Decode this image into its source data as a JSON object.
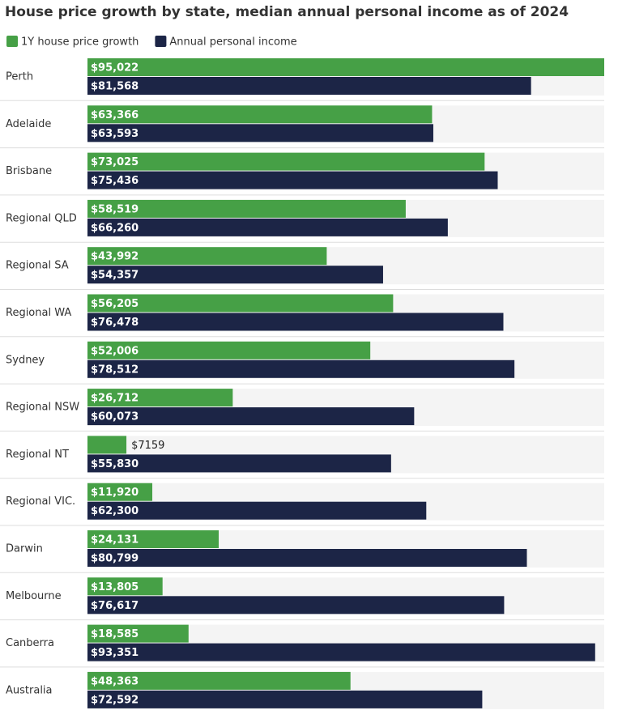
{
  "chart_data": {
    "type": "bar",
    "orientation": "horizontal",
    "title": "House price growth by state, median annual personal income as of 2024",
    "categories": [
      "Perth",
      "Adelaide",
      "Brisbane",
      "Regional QLD",
      "Regional SA",
      "Regional WA",
      "Sydney",
      "Regional NSW",
      "Regional NT",
      "Regional VIC.",
      "Darwin",
      "Melbourne",
      "Canberra",
      "Australia"
    ],
    "series": [
      {
        "name": "1Y house price growth",
        "color": "#46a046",
        "values": [
          95022,
          63366,
          73025,
          58519,
          43992,
          56205,
          52006,
          26712,
          7159,
          11920,
          24131,
          13805,
          18585,
          48363
        ],
        "value_labels": [
          "$95,022",
          "$63,366",
          "$73,025",
          "$58,519",
          "$43,992",
          "$56,205",
          "$52,006",
          "$26,712",
          "$7159",
          "$11,920",
          "$24,131",
          "$13,805",
          "$18,585",
          "$48,363"
        ]
      },
      {
        "name": "Annual personal income",
        "color": "#1c2546",
        "values": [
          81568,
          63593,
          75436,
          66260,
          54357,
          76478,
          78512,
          60073,
          55830,
          62300,
          80799,
          76617,
          93351,
          72592
        ],
        "value_labels": [
          "$81,568",
          "$63,593",
          "$75,436",
          "$66,260",
          "$54,357",
          "$76,478",
          "$78,512",
          "$60,073",
          "$55,830",
          "$62,300",
          "$80,799",
          "$76,617",
          "$93,351",
          "$72,592"
        ]
      }
    ],
    "legend": "top-left"
  }
}
